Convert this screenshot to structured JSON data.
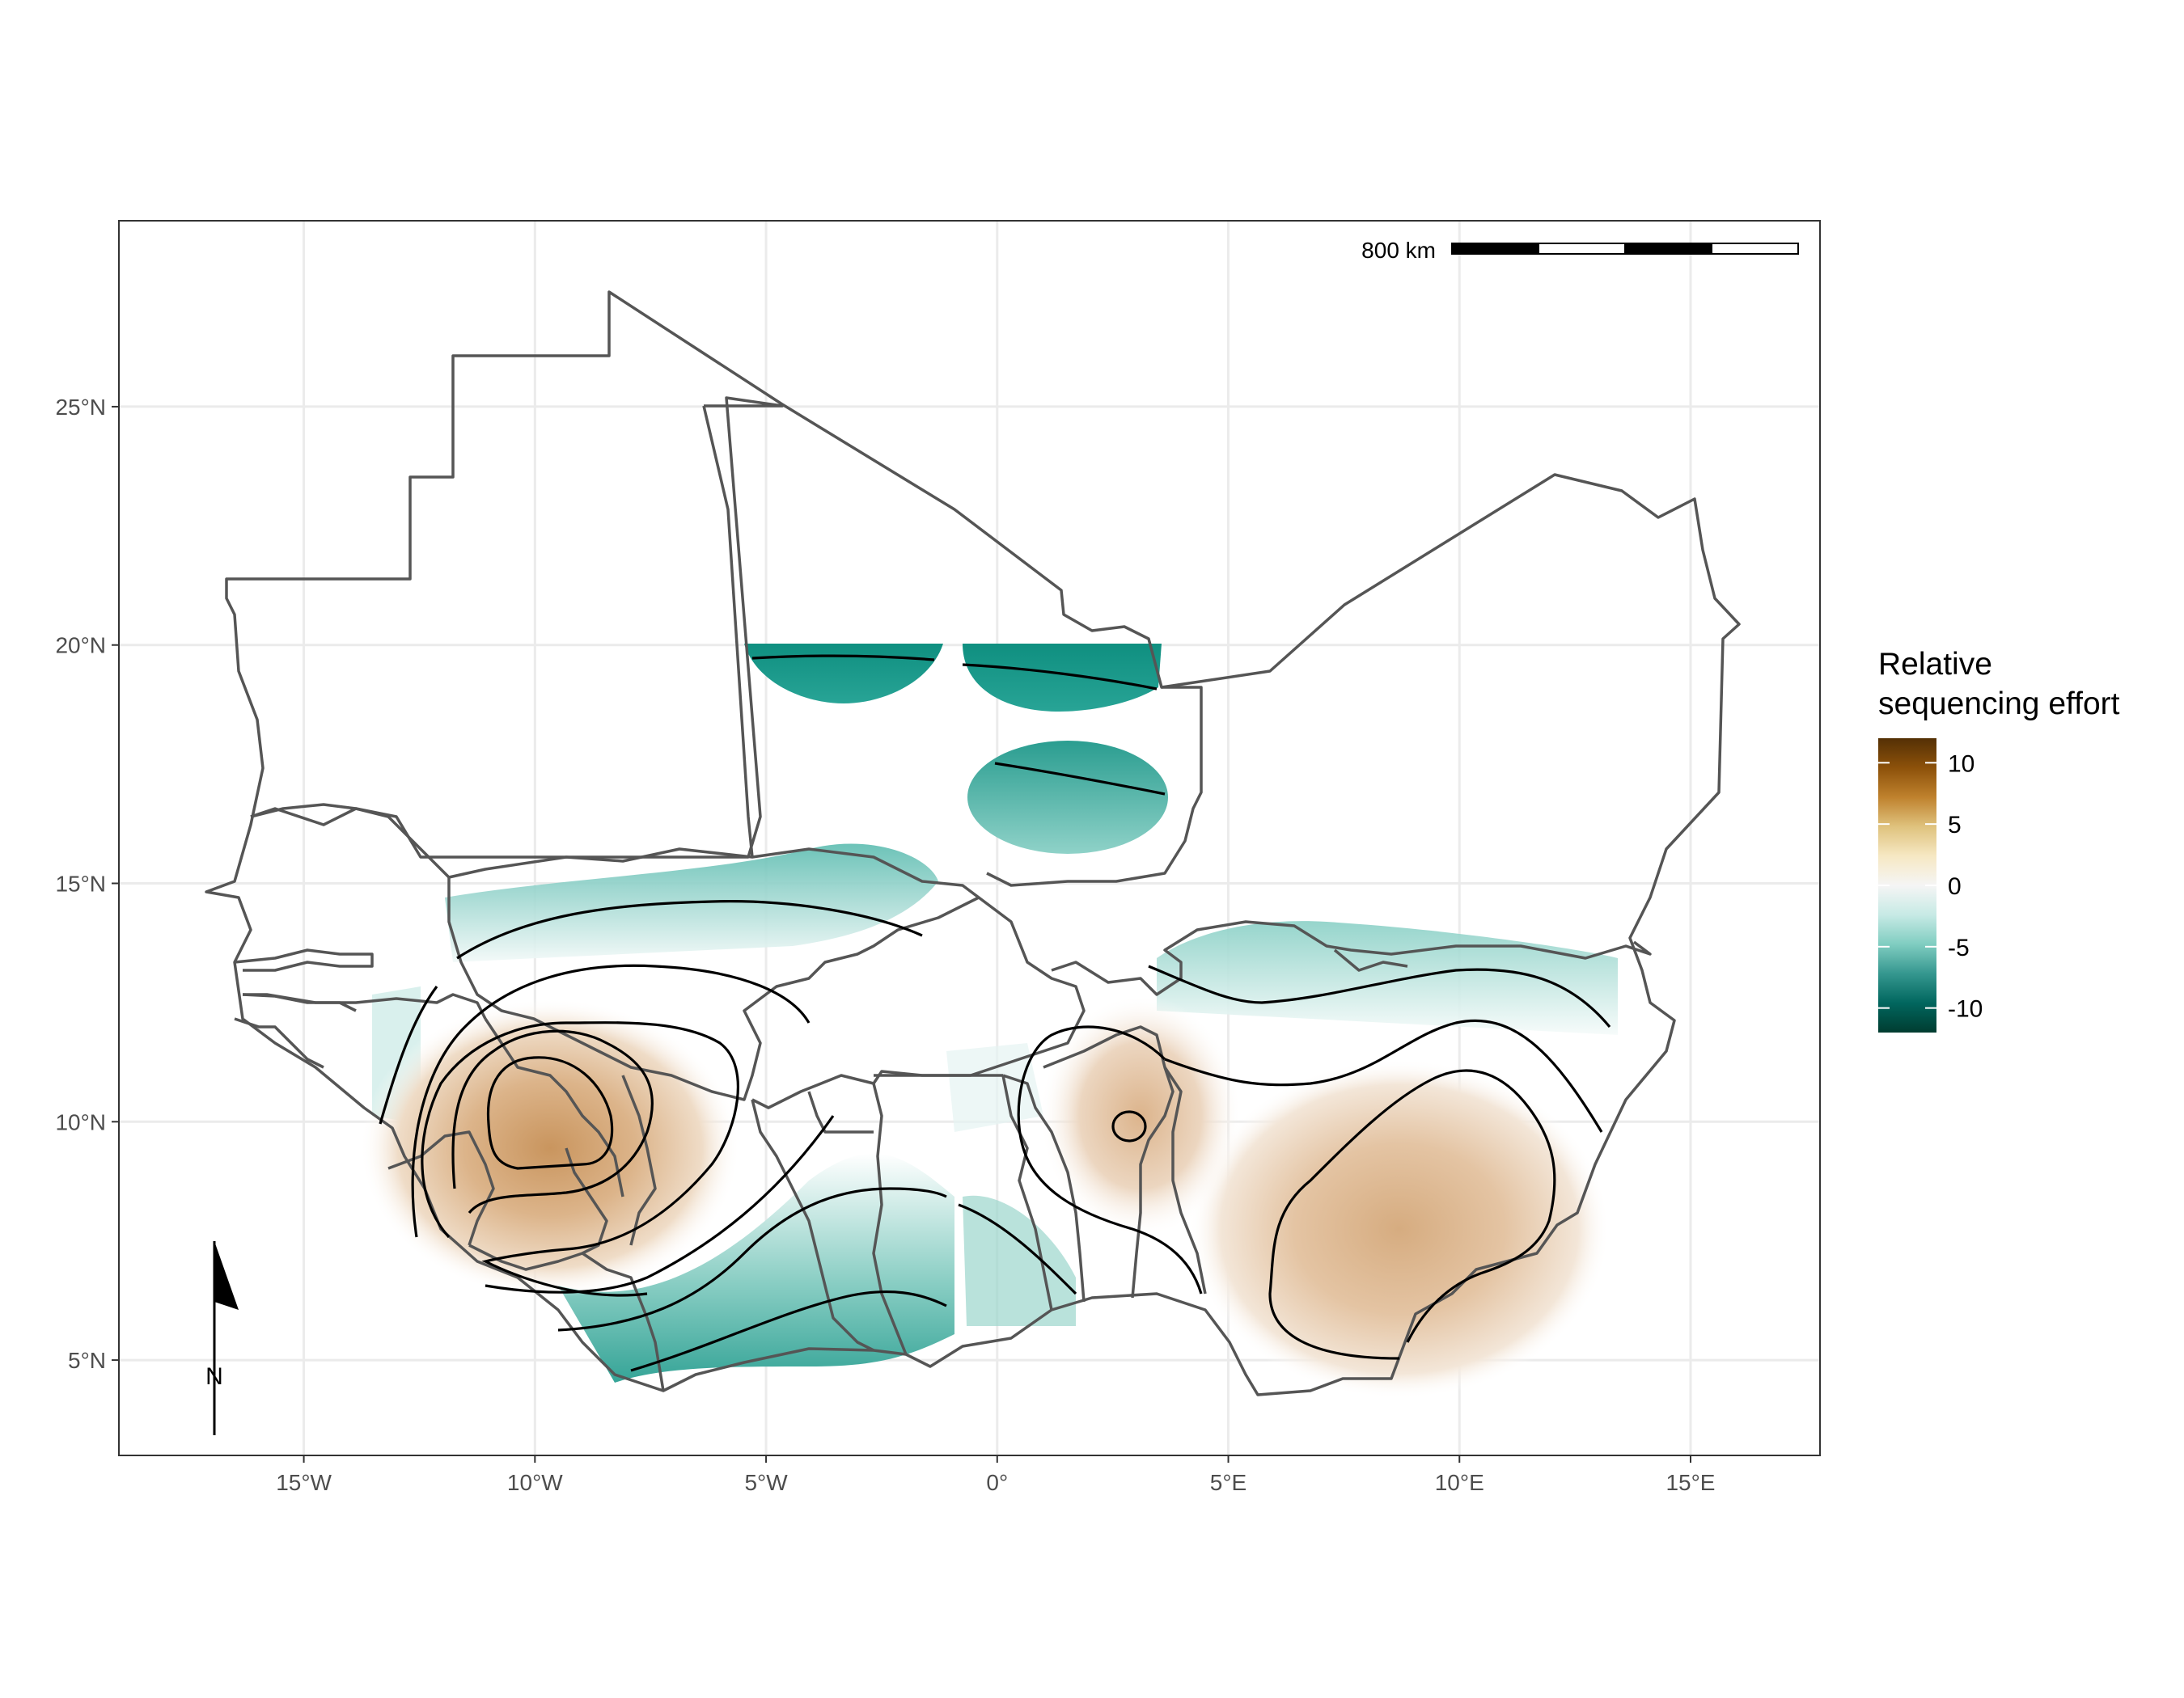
{
  "map": {
    "extent": {
      "lon": [
        -19,
        17.8
      ],
      "lat": [
        3.0,
        28.9
      ]
    },
    "x_ticks": [
      {
        "lon": -15,
        "label": "15°W"
      },
      {
        "lon": -10,
        "label": "10°W"
      },
      {
        "lon": -5,
        "label": "5°W"
      },
      {
        "lon": 0,
        "label": "0°"
      },
      {
        "lon": 5,
        "label": "5°E"
      },
      {
        "lon": 10,
        "label": "10°E"
      },
      {
        "lon": 15,
        "label": "15°E"
      }
    ],
    "y_ticks": [
      {
        "lat": 5,
        "label": "5°N"
      },
      {
        "lat": 10,
        "label": "10°N"
      },
      {
        "lat": 15,
        "label": "15°N"
      },
      {
        "lat": 20,
        "label": "20°N"
      },
      {
        "lat": 25,
        "label": "25°N"
      }
    ],
    "grid": true,
    "scale_bar": {
      "label": "800 km",
      "segments": 4
    },
    "north_arrow": {
      "label": "N",
      "position": "bottom-left"
    },
    "colors": {
      "border": "#555555",
      "grid": "#ebebeb",
      "panel_border": "#333333",
      "contour": "#000000",
      "low": "#00806f",
      "mid": "#f5f5f5",
      "high": "#bf8a52"
    }
  },
  "legend": {
    "title_line1": "Relative",
    "title_line2": "sequencing effort",
    "range": [
      -12,
      12
    ],
    "ticks": [
      {
        "value": 10,
        "label": "10"
      },
      {
        "value": 5,
        "label": "5"
      },
      {
        "value": 0,
        "label": "0"
      },
      {
        "value": -5,
        "label": "-5"
      },
      {
        "value": -10,
        "label": "-10"
      }
    ],
    "colors": [
      "#003c30",
      "#01665e",
      "#35978f",
      "#80cdc1",
      "#c7eae5",
      "#f5f5f5",
      "#f6e8c3",
      "#dfc27d",
      "#bf812d",
      "#8c510a",
      "#543005"
    ]
  }
}
